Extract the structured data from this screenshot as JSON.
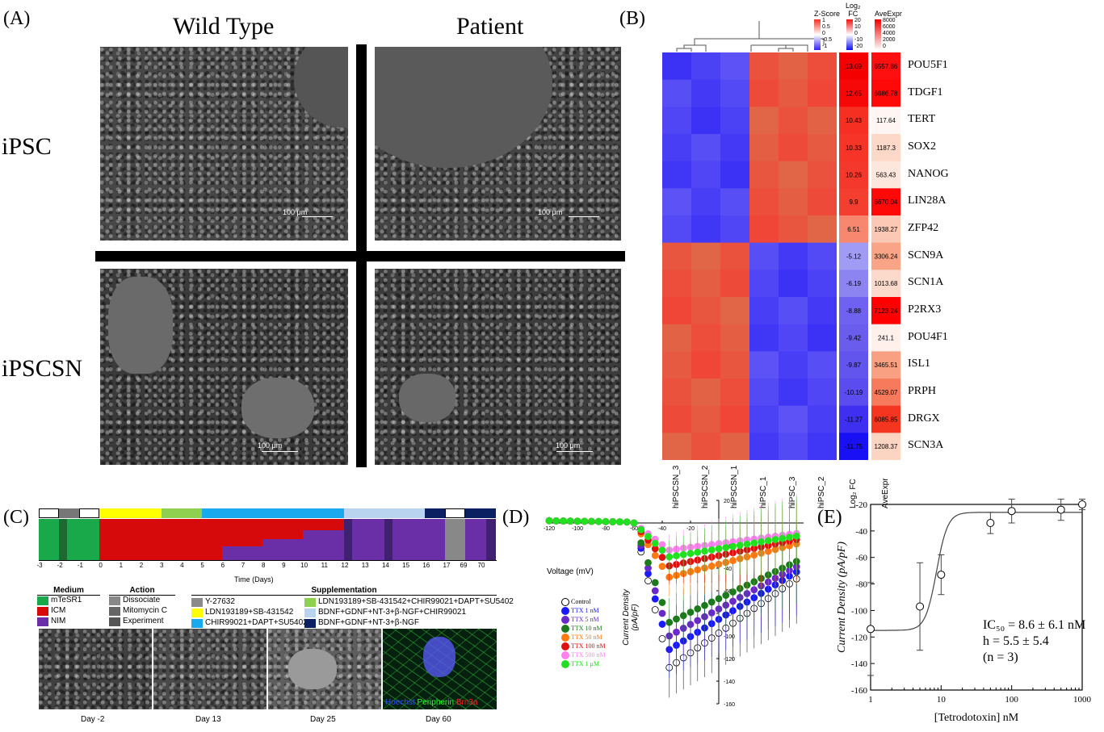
{
  "panelA": {
    "label": "(A)",
    "col_headers": [
      "Wild Type",
      "Patient"
    ],
    "row_headers": [
      "iPSC",
      "iPSCSN"
    ],
    "scale_bar": "100 μm",
    "scale_bar_alt": "100 μm"
  },
  "panelB": {
    "label": "(B)",
    "legend_z_title": "Z-Score",
    "legend_z_ticks": [
      "1",
      "0.5",
      "0",
      "-0.5",
      "-1"
    ],
    "legend_fc_title_line1": "Log₂",
    "legend_fc_title_line2": "FC",
    "legend_fc_ticks": [
      "20",
      "10",
      "0",
      "-10",
      "-20"
    ],
    "legend_ave_title": "AveExpr",
    "legend_ave_ticks": [
      "8000",
      "6000",
      "4000",
      "2000",
      "0"
    ],
    "genes": [
      "POU5F1",
      "TDGF1",
      "TERT",
      "SOX2",
      "NANOG",
      "LIN28A",
      "ZFP42",
      "SCN9A",
      "SCN1A",
      "P2RX3",
      "POU4F1",
      "ISL1",
      "PRPH",
      "DRGX",
      "SCN3A"
    ],
    "log2fc": [
      "13.09",
      "12.65",
      "10.43",
      "10.33",
      "10.26",
      "9.9",
      "6.51",
      "-5.12",
      "-6.19",
      "-8.88",
      "-9.42",
      "-9.87",
      "-10.19",
      "-11.27",
      "-11.75"
    ],
    "aveexpr": [
      "6557.86",
      "6686.78",
      "117.64",
      "1187.3",
      "563.43",
      "6670.04",
      "1938.27",
      "3306.24",
      "1013.68",
      "7123.24",
      "241.1",
      "3465.51",
      "4529.07",
      "6085.85",
      "1208.37"
    ],
    "columns": [
      "hiPSCSN_3",
      "hiPSCSN_2",
      "hiPSCSN_1",
      "hiPSC_1",
      "hiPSC_3",
      "hiPSC_2",
      "Log₂ FC",
      "AveExpr"
    ],
    "fc_colors": [
      "#f40000",
      "#f60808",
      "#f52f22",
      "#f63427",
      "#f4382c",
      "#f33e30",
      "#f7876e",
      "#a09cf6",
      "#8c84f0",
      "#6f62f0",
      "#6a5ced",
      "#6255ee",
      "#5a4cee",
      "#3f2ff0",
      "#1a10f6"
    ],
    "ave_colors": [
      "#ff1010",
      "#ff0808",
      "#fff6f4",
      "#fbd8c8",
      "#fde6dc",
      "#ff0808",
      "#fac8b4",
      "#f9a486",
      "#fcdacb",
      "#ff0000",
      "#fff0ec",
      "#f9a082",
      "#f77a5c",
      "#f43620",
      "#fbd4c2"
    ]
  },
  "panelC": {
    "label": "(C)",
    "axis_title": "Time (Days)",
    "ticks": [
      "-3",
      "-2",
      "-1",
      "0",
      "1",
      "2",
      "3",
      "4",
      "5",
      "6",
      "7",
      "8",
      "9",
      "10",
      "11",
      "12",
      "13",
      "14",
      "15",
      "16",
      "17",
      "69",
      "70"
    ],
    "medium_title": "Medium",
    "medium_items": [
      {
        "label": "mTeSR1",
        "color": "#19a84a"
      },
      {
        "label": "ICM",
        "color": "#d60a0a"
      },
      {
        "label": "NIM",
        "color": "#6a2fa6"
      }
    ],
    "action_title": "Action",
    "action_items": [
      {
        "label": "Dissociate",
        "color": "#888888"
      },
      {
        "label": "Mitomycin C",
        "color": "#666666"
      },
      {
        "label": "Experiment",
        "color": "#555555"
      }
    ],
    "supp_title": "Supplementation",
    "supp_items_left": [
      {
        "label": "Y-27632",
        "color": "#8a8a8a"
      },
      {
        "label": "LDN193189+SB-431542",
        "color": "#ffff00"
      },
      {
        "label": "CHIR99021+DAPT+SU5402",
        "color": "#19aaee"
      }
    ],
    "supp_items_right": [
      {
        "label": "LDN193189+SB-431542+CHIR99021+DAPT+SU5402",
        "color": "#90d050"
      },
      {
        "label": "BDNF+GDNF+NT-3+β-NGF+CHIR99021",
        "color": "#b8d4ee"
      },
      {
        "label": "BDNF+GDNF+NT-3+β-NGF",
        "color": "#0a2060"
      }
    ],
    "image_captions": [
      "Day -2",
      "Day 13",
      "Day 25",
      "Day 60"
    ],
    "stain_labels": [
      {
        "label": "Hoechst",
        "color": "#3050ff"
      },
      {
        "label": "Peripherin",
        "color": "#30ff30"
      },
      {
        "label": "Brn3a",
        "color": "#ff2020"
      }
    ]
  },
  "panelD": {
    "label": "(D)",
    "x_title": "Voltage (mV)",
    "y_title_line1": "Current Density",
    "y_title_line2": "(pA/pF)",
    "x_ticks": [
      "-120",
      "-100",
      "-80",
      "-60",
      "-40",
      "-20"
    ],
    "y_ticks": [
      "20",
      "-20",
      "-40",
      "-60",
      "-80",
      "-100",
      "-120",
      "-140",
      "-160"
    ],
    "legend": [
      {
        "label": "Control",
        "color": "#ffffff",
        "text": "#000000"
      },
      {
        "label": "TTX 1 nM",
        "color": "#1a1aff",
        "text": "#1a1aff"
      },
      {
        "label": "TTX 5 nM",
        "color": "#6a2acb",
        "text": "#6a2acb"
      },
      {
        "label": "TTX 10 nM",
        "color": "#1c7a1c",
        "text": "#1c7a1c"
      },
      {
        "label": "TTX 50 nM",
        "color": "#ff7a10",
        "text": "#ff7a10"
      },
      {
        "label": "TTX 100 nM",
        "color": "#e01010",
        "text": "#e01010"
      },
      {
        "label": "TTX 500 nM",
        "color": "#ff80ee",
        "text": "#ff80ee"
      },
      {
        "label": "TTX 1 μM",
        "color": "#20e020",
        "text": "#20e020"
      }
    ]
  },
  "chart_data": {
    "type": "scatter",
    "title": "",
    "label": "(E)",
    "xlabel": "[Tetrodotoxin] nM",
    "ylabel": "Current Density (pA/pF)",
    "x_scale": "log",
    "xlim": [
      1,
      1000
    ],
    "ylim": [
      -160,
      -20
    ],
    "x_tick_labels": [
      "1",
      "10",
      "100",
      "1000"
    ],
    "y_tick_labels": [
      "-20",
      "-40",
      "-60",
      "-80",
      "-100",
      "-120",
      "-140",
      "-160"
    ],
    "points": [
      {
        "x": 1,
        "y": -114,
        "err": 35
      },
      {
        "x": 5,
        "y": -97,
        "err": 33
      },
      {
        "x": 10,
        "y": -73,
        "err": 15
      },
      {
        "x": 50,
        "y": -34,
        "err": 8
      },
      {
        "x": 100,
        "y": -25,
        "err": 9
      },
      {
        "x": 500,
        "y": -24,
        "err": 8
      },
      {
        "x": 1000,
        "y": -20,
        "err": 4
      }
    ],
    "fit": {
      "ic50": 8.6,
      "hill": 5.5,
      "bottom": -115,
      "top": -26
    },
    "annotation_lines": [
      "IC₅₀ = 8.6 ± 6.1 nM",
      "h = 5.5 ± 5.4",
      "(n = 3)"
    ]
  }
}
